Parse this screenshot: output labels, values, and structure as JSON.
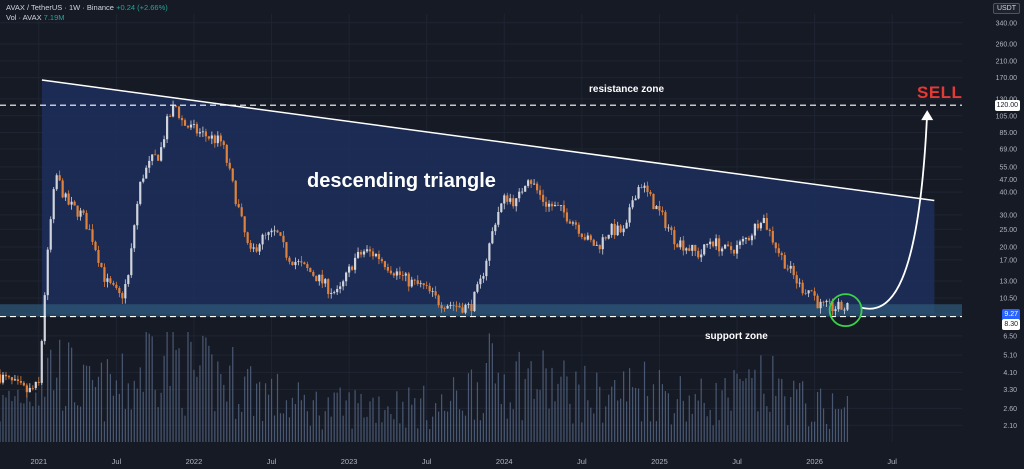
{
  "header": {
    "symbol_line": "AVAX / TetherUS · 1W · Binance",
    "change": "+0.24 (+2.66%)",
    "vol_label": "Vol · AVAX",
    "vol_value": "7.19M"
  },
  "currency_button": "USDT",
  "annotations": {
    "resistance": "resistance zone",
    "support": "support zone",
    "pattern": "descending triangle",
    "signal": "SELL"
  },
  "price_tags": {
    "resistance": "120.00",
    "current": "9.27",
    "support": "8.30"
  },
  "colors": {
    "background": "#161a25",
    "up": "#d1d4dc",
    "down": "#e0823c",
    "zone_fill": "#1c2f5c",
    "support_band": "#2d5a7a",
    "signal": "#e53935",
    "circle": "#3ad14b",
    "current_tag": "#2962ff"
  },
  "chart_data": {
    "type": "candlestick",
    "title": "AVAX / TetherUS · 1W · Binance",
    "y_scale": "log",
    "ylim": [
      1.7,
      380
    ],
    "y_ticks": [
      2.1,
      2.6,
      3.3,
      4.1,
      5.1,
      6.5,
      8.3,
      10.5,
      13.0,
      17.0,
      20.0,
      25.0,
      30.0,
      40.0,
      47.0,
      55.0,
      69.0,
      85.0,
      105.0,
      130.0,
      170.0,
      210.0,
      260.0,
      340.0
    ],
    "x_tick_labels": [
      "2021",
      "Jul",
      "2022",
      "Jul",
      "2023",
      "Jul",
      "2024",
      "Jul",
      "2025",
      "Jul",
      "2026",
      "Jul"
    ],
    "x_ticks": [
      2021.0,
      2021.5,
      2022.0,
      2022.5,
      2023.0,
      2023.5,
      2024.0,
      2024.5,
      2025.0,
      2025.5,
      2026.0,
      2026.5
    ],
    "xlim": [
      2020.75,
      2026.95
    ],
    "price_path": [
      [
        2020.75,
        4.0
      ],
      [
        2020.95,
        3.2
      ],
      [
        2021.02,
        3.5
      ],
      [
        2021.06,
        12
      ],
      [
        2021.09,
        25
      ],
      [
        2021.13,
        50
      ],
      [
        2021.2,
        35
      ],
      [
        2021.3,
        30
      ],
      [
        2021.37,
        22
      ],
      [
        2021.45,
        13
      ],
      [
        2021.55,
        10.5
      ],
      [
        2021.6,
        14
      ],
      [
        2021.63,
        25
      ],
      [
        2021.68,
        48
      ],
      [
        2021.75,
        60
      ],
      [
        2021.8,
        65
      ],
      [
        2021.85,
        100
      ],
      [
        2021.9,
        120
      ],
      [
        2021.95,
        95
      ],
      [
        2022.05,
        85
      ],
      [
        2022.2,
        75
      ],
      [
        2022.28,
        40
      ],
      [
        2022.38,
        18
      ],
      [
        2022.45,
        22
      ],
      [
        2022.55,
        24
      ],
      [
        2022.62,
        18
      ],
      [
        2022.7,
        16
      ],
      [
        2022.8,
        14
      ],
      [
        2022.88,
        12
      ],
      [
        2022.95,
        11
      ],
      [
        2023.05,
        17
      ],
      [
        2023.12,
        19
      ],
      [
        2023.2,
        18
      ],
      [
        2023.3,
        15
      ],
      [
        2023.4,
        13
      ],
      [
        2023.5,
        12
      ],
      [
        2023.6,
        10
      ],
      [
        2023.72,
        9.5
      ],
      [
        2023.8,
        9.3
      ],
      [
        2023.87,
        13
      ],
      [
        2023.92,
        20
      ],
      [
        2023.97,
        30
      ],
      [
        2024.03,
        38
      ],
      [
        2024.1,
        35
      ],
      [
        2024.17,
        50
      ],
      [
        2024.22,
        42
      ],
      [
        2024.28,
        35
      ],
      [
        2024.38,
        32
      ],
      [
        2024.48,
        27
      ],
      [
        2024.55,
        22
      ],
      [
        2024.62,
        20
      ],
      [
        2024.7,
        25
      ],
      [
        2024.8,
        24
      ],
      [
        2024.85,
        38
      ],
      [
        2024.9,
        45
      ],
      [
        2024.95,
        38
      ],
      [
        2025.05,
        28
      ],
      [
        2025.12,
        22
      ],
      [
        2025.2,
        20
      ],
      [
        2025.28,
        18
      ],
      [
        2025.35,
        22
      ],
      [
        2025.45,
        19
      ],
      [
        2025.52,
        20
      ],
      [
        2025.6,
        23
      ],
      [
        2025.68,
        30
      ],
      [
        2025.73,
        24
      ],
      [
        2025.8,
        18
      ],
      [
        2025.88,
        14
      ],
      [
        2025.93,
        12
      ],
      [
        2026.0,
        11.5
      ],
      [
        2026.05,
        9.5
      ],
      [
        2026.13,
        9.3
      ],
      [
        2026.22,
        9.27
      ]
    ],
    "volume_path": [
      [
        2020.75,
        0.3
      ],
      [
        2021.1,
        0.7
      ],
      [
        2021.3,
        0.45
      ],
      [
        2021.6,
        0.5
      ],
      [
        2021.75,
        0.9
      ],
      [
        2022.0,
        0.6
      ],
      [
        2022.3,
        0.55
      ],
      [
        2022.6,
        0.35
      ],
      [
        2022.9,
        0.3
      ],
      [
        2023.2,
        0.35
      ],
      [
        2023.6,
        0.3
      ],
      [
        2023.9,
        0.6
      ],
      [
        2024.2,
        0.55
      ],
      [
        2024.6,
        0.4
      ],
      [
        2024.9,
        0.5
      ],
      [
        2025.3,
        0.35
      ],
      [
        2025.7,
        0.5
      ],
      [
        2026.0,
        0.3
      ],
      [
        2026.22,
        0.3
      ]
    ],
    "annotations": [
      {
        "type": "hline",
        "label": "resistance zone",
        "value": 120
      },
      {
        "type": "hline",
        "label": "support zone",
        "value": 8.3
      },
      {
        "type": "trendline",
        "from": [
          2021.02,
          165
        ],
        "to": [
          2026.72,
          36
        ]
      },
      {
        "type": "triangle_zone",
        "top_left": [
          2021.02,
          165
        ],
        "top_right": [
          2026.72,
          36
        ],
        "bottom": 8.6
      },
      {
        "type": "projection",
        "from": [
          2026.22,
          9.3
        ],
        "to": [
          2026.7,
          110
        ],
        "label": "SELL"
      }
    ],
    "grid": true,
    "legend": "none"
  }
}
